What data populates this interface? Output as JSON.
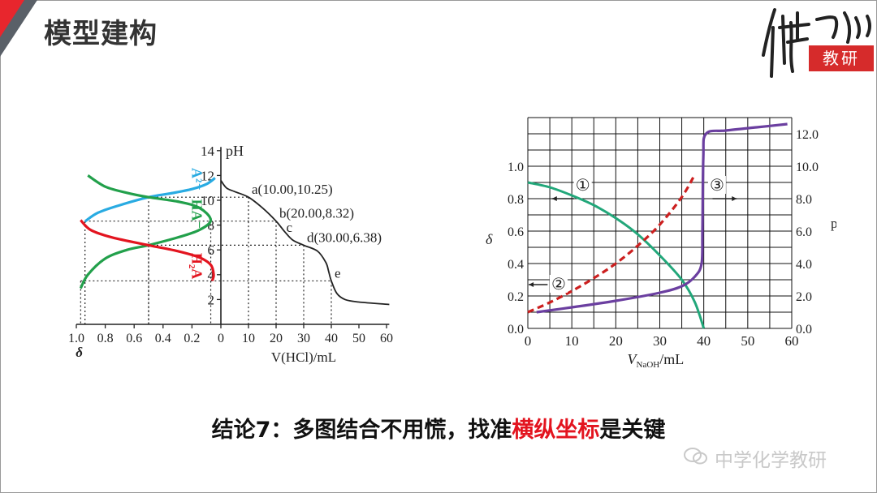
{
  "header": {
    "title": "模型建构",
    "logo_text": "教研"
  },
  "conclusion": {
    "prefix": "结论7：多图结合不用慌，找准",
    "highlight": "横纵坐标",
    "suffix": "是关键"
  },
  "watermark": {
    "text": "中学化学教研"
  },
  "chart_data": [
    {
      "type": "line",
      "title": "",
      "ylabel": "pH",
      "xlabel": "V(HCl)/mL",
      "left_axis_label": "δ",
      "right_xlim": [
        0,
        60
      ],
      "left_xlim": [
        1.0,
        0
      ],
      "ylim": [
        0,
        14
      ],
      "right_ticks": [
        "0",
        "10",
        "20",
        "30",
        "40",
        "50",
        "60"
      ],
      "left_ticks": [
        "1.0",
        "0.8",
        "0.6",
        "0.4",
        "0.2",
        "0"
      ],
      "y_ticks": [
        "2",
        "4",
        "6",
        "8",
        "10",
        "12",
        "14"
      ],
      "series": [
        {
          "name": "A²⁻",
          "color": "#29abe2",
          "points": [
            [
              0.04,
              11.8
            ],
            [
              0.1,
              11.3
            ],
            [
              0.2,
              10.9
            ],
            [
              0.35,
              10.55
            ],
            [
              0.5,
              10.25
            ],
            [
              0.7,
              9.6
            ],
            [
              0.85,
              9.0
            ],
            [
              0.94,
              8.3
            ]
          ]
        },
        {
          "name": "HA⁻",
          "color": "#22a04b",
          "points": [
            [
              0.92,
              12.0
            ],
            [
              0.8,
              11.1
            ],
            [
              0.65,
              10.6
            ],
            [
              0.5,
              10.25
            ],
            [
              0.3,
              9.9
            ],
            [
              0.15,
              9.4
            ],
            [
              0.07,
              8.4
            ],
            [
              0.15,
              7.6
            ],
            [
              0.3,
              7.0
            ],
            [
              0.5,
              6.38
            ],
            [
              0.65,
              6.0
            ],
            [
              0.8,
              5.3
            ],
            [
              0.92,
              4.0
            ],
            [
              0.97,
              2.9
            ]
          ]
        },
        {
          "name": "H₂A",
          "color": "#e3141f",
          "points": [
            [
              0.97,
              8.4
            ],
            [
              0.9,
              7.6
            ],
            [
              0.75,
              7.0
            ],
            [
              0.5,
              6.38
            ],
            [
              0.3,
              5.9
            ],
            [
              0.15,
              5.4
            ],
            [
              0.07,
              4.8
            ],
            [
              0.05,
              4.0
            ],
            [
              0.06,
              3.5
            ]
          ]
        },
        {
          "name": "pH",
          "color": "#222",
          "points": [
            [
              0,
              11.6
            ],
            [
              2,
              11.0
            ],
            [
              5,
              10.7
            ],
            [
              10,
              10.25
            ],
            [
              15,
              9.4
            ],
            [
              20,
              8.32
            ],
            [
              23,
              7.5
            ],
            [
              26,
              6.8
            ],
            [
              30,
              6.38
            ],
            [
              35,
              5.9
            ],
            [
              38,
              5.0
            ],
            [
              39,
              4.3
            ],
            [
              40,
              3.5
            ],
            [
              42,
              2.5
            ],
            [
              45,
              2.0
            ],
            [
              50,
              1.8
            ],
            [
              61,
              1.6
            ]
          ]
        }
      ],
      "annotations": [
        {
          "text": "a(10.00,10.25)",
          "x": 10,
          "y": 10.25
        },
        {
          "text": "b(20.00,8.32)",
          "x": 20,
          "y": 8.32
        },
        {
          "text": "c",
          "x": 22.5,
          "y": 7.2
        },
        {
          "text": "d(30.00,6.38)",
          "x": 30,
          "y": 6.38
        },
        {
          "text": "e",
          "x": 40,
          "y": 3.5
        }
      ],
      "series_labels": [
        "A²⁻",
        "HA⁻",
        "H₂A"
      ]
    },
    {
      "type": "line",
      "title": "",
      "xlabel": "V_NaOH/mL",
      "left_axis_label": "δ",
      "right_axis_label": "pH",
      "xlim": [
        0,
        60
      ],
      "left_ylim": [
        0,
        1.3
      ],
      "right_ylim": [
        0,
        13
      ],
      "x_ticks": [
        "0",
        "10",
        "20",
        "30",
        "40",
        "50",
        "60"
      ],
      "left_ticks": [
        "0.0",
        "0.2",
        "0.4",
        "0.6",
        "0.8",
        "1.0"
      ],
      "right_ticks": [
        "0.0",
        "2.0",
        "4.0",
        "6.0",
        "8.0",
        "10.0",
        "12.0"
      ],
      "grid": true,
      "series": [
        {
          "name": "①",
          "color": "#22a77a",
          "axis": "left",
          "points": [
            [
              0,
              0.9
            ],
            [
              5,
              0.87
            ],
            [
              10,
              0.82
            ],
            [
              15,
              0.76
            ],
            [
              20,
              0.68
            ],
            [
              25,
              0.58
            ],
            [
              30,
              0.45
            ],
            [
              35,
              0.3
            ],
            [
              38,
              0.16
            ],
            [
              40,
              0.0
            ]
          ]
        },
        {
          "name": "②",
          "color": "#cc1f1f",
          "dashed": true,
          "axis": "right",
          "points": [
            [
              0,
              1.0
            ],
            [
              5,
              1.6
            ],
            [
              10,
              2.3
            ],
            [
              15,
              3.1
            ],
            [
              20,
              4.0
            ],
            [
              25,
              5.1
            ],
            [
              30,
              6.4
            ],
            [
              35,
              8.1
            ],
            [
              38,
              9.5
            ]
          ]
        },
        {
          "name": "③",
          "color": "#6b3fa0",
          "axis": "right",
          "points": [
            [
              2,
              1.0
            ],
            [
              10,
              1.3
            ],
            [
              20,
              1.7
            ],
            [
              30,
              2.2
            ],
            [
              35,
              2.6
            ],
            [
              38,
              3.2
            ],
            [
              39.5,
              4.0
            ],
            [
              39.7,
              6.0
            ],
            [
              39.9,
              10.5
            ],
            [
              40.5,
              12.0
            ],
            [
              45,
              12.2
            ],
            [
              52,
              12.4
            ],
            [
              59,
              12.6
            ]
          ]
        }
      ],
      "labels": [
        "①",
        "②",
        "③"
      ]
    }
  ]
}
